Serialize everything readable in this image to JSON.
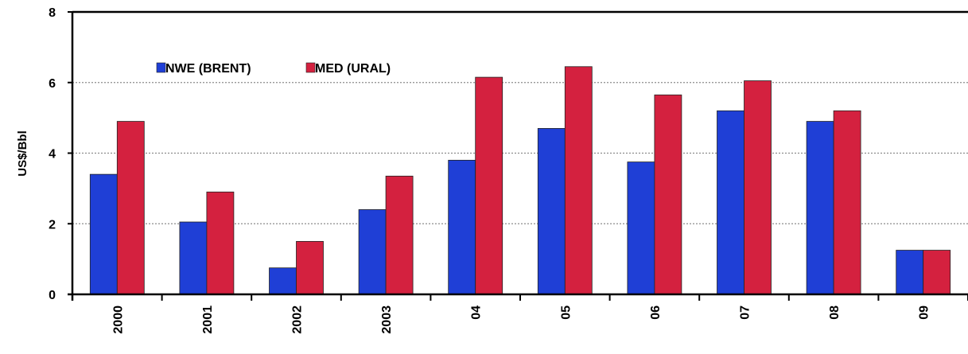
{
  "chart_data": {
    "type": "bar",
    "title": "",
    "xlabel": "",
    "ylabel": "US$/Bbl",
    "ylim": [
      0,
      8
    ],
    "yticks": [
      "0",
      "2",
      "4",
      "6",
      "8"
    ],
    "categories": [
      "2000",
      "2001",
      "2002",
      "2003",
      "04",
      "05",
      "06",
      "07",
      "08",
      "09"
    ],
    "series": [
      {
        "name": "NWE (BRENT)",
        "color": "#1f3fd6",
        "values": [
          3.4,
          2.05,
          0.75,
          2.4,
          3.8,
          4.7,
          3.75,
          5.2,
          4.9,
          1.25
        ]
      },
      {
        "name": "MED (URAL)",
        "color": "#d4213f",
        "values": [
          4.9,
          2.9,
          1.5,
          3.35,
          6.15,
          6.45,
          5.65,
          6.05,
          5.2,
          1.25
        ]
      }
    ],
    "grid": true,
    "legend_position": "top-left"
  }
}
